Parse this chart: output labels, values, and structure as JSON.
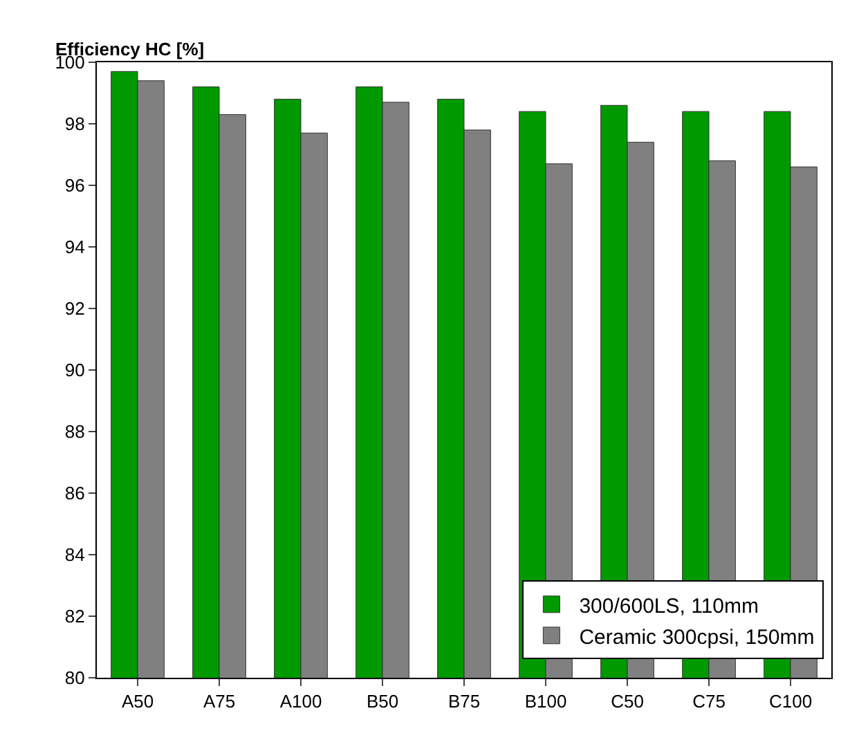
{
  "chart_data": {
    "type": "bar",
    "ylabel": "Efficiency HC [%]",
    "categories": [
      "A50",
      "A75",
      "A100",
      "B50",
      "B75",
      "B100",
      "C50",
      "C75",
      "C100"
    ],
    "series": [
      {
        "name": "300/600LS, 110mm",
        "color": "#009900",
        "values": [
          99.7,
          99.2,
          98.8,
          99.2,
          98.8,
          98.4,
          98.6,
          98.4,
          98.4
        ]
      },
      {
        "name": "Ceramic 300cpsi, 150mm",
        "color": "#808080",
        "values": [
          99.4,
          98.3,
          97.7,
          98.7,
          97.8,
          96.7,
          97.4,
          96.8,
          96.6
        ]
      }
    ],
    "ylim": [
      80,
      100
    ],
    "yticks": [
      80,
      82,
      84,
      86,
      88,
      90,
      92,
      94,
      96,
      98,
      100
    ],
    "grid": false,
    "legend": "bottom right"
  }
}
